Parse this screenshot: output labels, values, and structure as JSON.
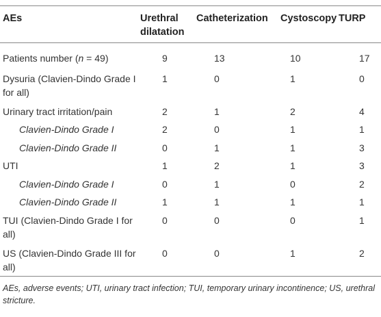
{
  "table": {
    "header": [
      "AEs",
      "Urethral dilatation",
      "Catheterization",
      "Cystoscopy",
      "TURP"
    ],
    "rows": [
      {
        "label_parts": [
          "Patients number (",
          "n",
          " = 49)"
        ],
        "values": [
          9,
          13,
          10,
          17
        ]
      },
      {
        "label": "Dysuria (Clavien-Dindo Grade I for all)",
        "values": [
          1,
          0,
          1,
          0
        ]
      },
      {
        "label": "Urinary tract irritation/pain",
        "values": [
          2,
          1,
          2,
          4
        ]
      },
      {
        "label": "Clavien-Dindo Grade I",
        "values": [
          2,
          0,
          1,
          1
        ]
      },
      {
        "label": "Clavien-Dindo Grade II",
        "values": [
          0,
          1,
          1,
          3
        ]
      },
      {
        "label": "UTI",
        "values": [
          1,
          2,
          1,
          3
        ]
      },
      {
        "label": "Clavien-Dindo Grade I",
        "values": [
          0,
          1,
          0,
          2
        ]
      },
      {
        "label": "Clavien-Dindo Grade II",
        "values": [
          1,
          1,
          1,
          1
        ]
      },
      {
        "label": "TUI (Clavien-Dindo Grade I for all)",
        "values": [
          0,
          0,
          0,
          1
        ]
      },
      {
        "label": "US (Clavien-Dindo Grade III for all)",
        "values": [
          0,
          0,
          1,
          2
        ]
      }
    ],
    "footnote": "AEs, adverse events; UTI, urinary tract infection; TUI, temporary urinary incontinence; US, urethral stricture."
  }
}
